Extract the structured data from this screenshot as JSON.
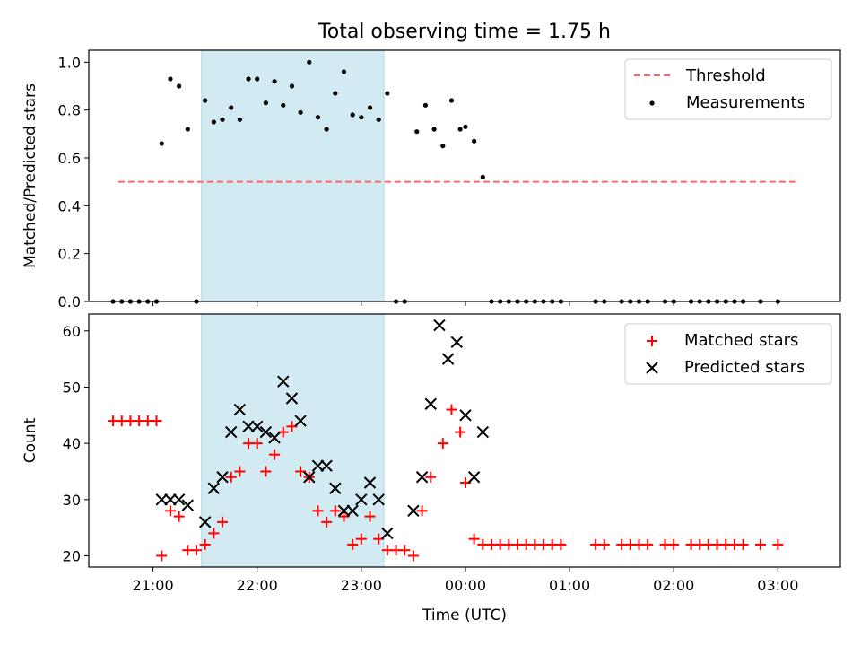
{
  "title": "Total observing time = 1.75 h",
  "colors": {
    "threshold": "#ff6666",
    "measurements": "#000000",
    "matched": "#ff0000",
    "predicted": "#000000",
    "shade": "#add8e6"
  },
  "chart_data": [
    {
      "type": "scatter",
      "ylabel": "Matched/Predicted stars",
      "ylim": [
        0,
        1.05
      ],
      "yticks": [
        "0.0",
        "0.2",
        "0.4",
        "0.6",
        "0.8",
        "1.0"
      ],
      "xlim": [
        "20:23",
        "03:36"
      ],
      "shaded_interval": [
        "21:28",
        "23:13"
      ],
      "legend_position": "upper right",
      "threshold": {
        "name": "Threshold",
        "y": 0.5,
        "x_start": "20:40",
        "x_end": "03:10"
      },
      "series": [
        {
          "name": "Measurements",
          "points": [
            [
              "20:37",
              0.0
            ],
            [
              "20:42",
              0.0
            ],
            [
              "20:47",
              0.0
            ],
            [
              "20:52",
              0.0
            ],
            [
              "20:57",
              0.0
            ],
            [
              "21:02",
              0.0
            ],
            [
              "21:05",
              0.66
            ],
            [
              "21:10",
              0.93
            ],
            [
              "21:15",
              0.9
            ],
            [
              "21:20",
              0.72
            ],
            [
              "21:25",
              0.0
            ],
            [
              "21:30",
              0.84
            ],
            [
              "21:35",
              0.75
            ],
            [
              "21:40",
              0.76
            ],
            [
              "21:45",
              0.81
            ],
            [
              "21:50",
              0.76
            ],
            [
              "21:55",
              0.93
            ],
            [
              "22:00",
              0.93
            ],
            [
              "22:05",
              0.83
            ],
            [
              "22:10",
              0.92
            ],
            [
              "22:15",
              0.82
            ],
            [
              "22:20",
              0.9
            ],
            [
              "22:25",
              0.79
            ],
            [
              "22:30",
              1.0
            ],
            [
              "22:35",
              0.77
            ],
            [
              "22:40",
              0.72
            ],
            [
              "22:45",
              0.87
            ],
            [
              "22:50",
              0.96
            ],
            [
              "22:55",
              0.78
            ],
            [
              "23:00",
              0.77
            ],
            [
              "23:05",
              0.81
            ],
            [
              "23:10",
              0.76
            ],
            [
              "23:15",
              0.87
            ],
            [
              "23:20",
              0.0
            ],
            [
              "23:25",
              0.0
            ],
            [
              "23:32",
              0.71
            ],
            [
              "23:37",
              0.82
            ],
            [
              "23:42",
              0.72
            ],
            [
              "23:47",
              0.65
            ],
            [
              "23:52",
              0.84
            ],
            [
              "23:57",
              0.72
            ],
            [
              "00:00",
              0.73
            ],
            [
              "00:05",
              0.67
            ],
            [
              "00:10",
              0.52
            ],
            [
              "00:15",
              0.0
            ],
            [
              "00:20",
              0.0
            ],
            [
              "00:25",
              0.0
            ],
            [
              "00:30",
              0.0
            ],
            [
              "00:35",
              0.0
            ],
            [
              "00:40",
              0.0
            ],
            [
              "00:45",
              0.0
            ],
            [
              "00:50",
              0.0
            ],
            [
              "00:55",
              0.0
            ],
            [
              "01:15",
              0.0
            ],
            [
              "01:20",
              0.0
            ],
            [
              "01:30",
              0.0
            ],
            [
              "01:35",
              0.0
            ],
            [
              "01:40",
              0.0
            ],
            [
              "01:45",
              0.0
            ],
            [
              "01:55",
              0.0
            ],
            [
              "02:00",
              0.0
            ],
            [
              "02:10",
              0.0
            ],
            [
              "02:15",
              0.0
            ],
            [
              "02:20",
              0.0
            ],
            [
              "02:25",
              0.0
            ],
            [
              "02:30",
              0.0
            ],
            [
              "02:35",
              0.0
            ],
            [
              "02:40",
              0.0
            ],
            [
              "02:50",
              0.0
            ],
            [
              "03:00",
              0.0
            ]
          ]
        }
      ]
    },
    {
      "type": "scatter",
      "ylabel": "Count",
      "xlabel": "Time (UTC)",
      "ylim": [
        18,
        63
      ],
      "yticks": [
        "20",
        "30",
        "40",
        "50",
        "60"
      ],
      "xlim": [
        "20:23",
        "03:36"
      ],
      "xticks": [
        "21:00",
        "22:00",
        "23:00",
        "00:00",
        "01:00",
        "02:00",
        "03:00"
      ],
      "shaded_interval": [
        "21:28",
        "23:13"
      ],
      "legend_position": "upper right",
      "series": [
        {
          "name": "Matched stars",
          "marker": "plus",
          "points": [
            [
              "20:37",
              44
            ],
            [
              "20:42",
              44
            ],
            [
              "20:47",
              44
            ],
            [
              "20:52",
              44
            ],
            [
              "20:57",
              44
            ],
            [
              "21:02",
              44
            ],
            [
              "21:05",
              20
            ],
            [
              "21:10",
              28
            ],
            [
              "21:15",
              27
            ],
            [
              "21:20",
              21
            ],
            [
              "21:25",
              21
            ],
            [
              "21:30",
              22
            ],
            [
              "21:35",
              24
            ],
            [
              "21:40",
              26
            ],
            [
              "21:45",
              34
            ],
            [
              "21:50",
              35
            ],
            [
              "21:55",
              40
            ],
            [
              "22:00",
              40
            ],
            [
              "22:05",
              35
            ],
            [
              "22:10",
              38
            ],
            [
              "22:15",
              42
            ],
            [
              "22:20",
              43
            ],
            [
              "22:25",
              35
            ],
            [
              "22:30",
              34
            ],
            [
              "22:35",
              28
            ],
            [
              "22:40",
              26
            ],
            [
              "22:45",
              28
            ],
            [
              "22:50",
              27
            ],
            [
              "22:55",
              22
            ],
            [
              "23:00",
              23
            ],
            [
              "23:05",
              27
            ],
            [
              "23:10",
              23
            ],
            [
              "23:15",
              21
            ],
            [
              "23:20",
              21
            ],
            [
              "23:25",
              21
            ],
            [
              "23:30",
              20
            ],
            [
              "23:35",
              28
            ],
            [
              "23:40",
              34
            ],
            [
              "23:47",
              40
            ],
            [
              "23:52",
              46
            ],
            [
              "23:57",
              42
            ],
            [
              "00:00",
              33
            ],
            [
              "00:05",
              23
            ],
            [
              "00:10",
              22
            ],
            [
              "00:15",
              22
            ],
            [
              "00:20",
              22
            ],
            [
              "00:25",
              22
            ],
            [
              "00:30",
              22
            ],
            [
              "00:35",
              22
            ],
            [
              "00:40",
              22
            ],
            [
              "00:45",
              22
            ],
            [
              "00:50",
              22
            ],
            [
              "00:55",
              22
            ],
            [
              "01:15",
              22
            ],
            [
              "01:20",
              22
            ],
            [
              "01:30",
              22
            ],
            [
              "01:35",
              22
            ],
            [
              "01:40",
              22
            ],
            [
              "01:45",
              22
            ],
            [
              "01:55",
              22
            ],
            [
              "02:00",
              22
            ],
            [
              "02:10",
              22
            ],
            [
              "02:15",
              22
            ],
            [
              "02:20",
              22
            ],
            [
              "02:25",
              22
            ],
            [
              "02:30",
              22
            ],
            [
              "02:35",
              22
            ],
            [
              "02:40",
              22
            ],
            [
              "02:50",
              22
            ],
            [
              "03:00",
              22
            ]
          ]
        },
        {
          "name": "Predicted stars",
          "marker": "x",
          "points": [
            [
              "21:05",
              30
            ],
            [
              "21:10",
              30
            ],
            [
              "21:15",
              30
            ],
            [
              "21:20",
              29
            ],
            [
              "21:30",
              26
            ],
            [
              "21:35",
              32
            ],
            [
              "21:40",
              34
            ],
            [
              "21:45",
              42
            ],
            [
              "21:50",
              46
            ],
            [
              "21:55",
              43
            ],
            [
              "22:00",
              43
            ],
            [
              "22:05",
              42
            ],
            [
              "22:10",
              41
            ],
            [
              "22:15",
              51
            ],
            [
              "22:20",
              48
            ],
            [
              "22:25",
              44
            ],
            [
              "22:30",
              34
            ],
            [
              "22:35",
              36
            ],
            [
              "22:40",
              36
            ],
            [
              "22:45",
              32
            ],
            [
              "22:50",
              28
            ],
            [
              "22:55",
              28
            ],
            [
              "23:00",
              30
            ],
            [
              "23:05",
              33
            ],
            [
              "23:10",
              30
            ],
            [
              "23:15",
              24
            ],
            [
              "23:30",
              28
            ],
            [
              "23:35",
              34
            ],
            [
              "23:40",
              47
            ],
            [
              "23:45",
              61
            ],
            [
              "23:50",
              55
            ],
            [
              "23:55",
              58
            ],
            [
              "00:00",
              45
            ],
            [
              "00:05",
              34
            ],
            [
              "00:10",
              42
            ]
          ]
        }
      ]
    }
  ]
}
